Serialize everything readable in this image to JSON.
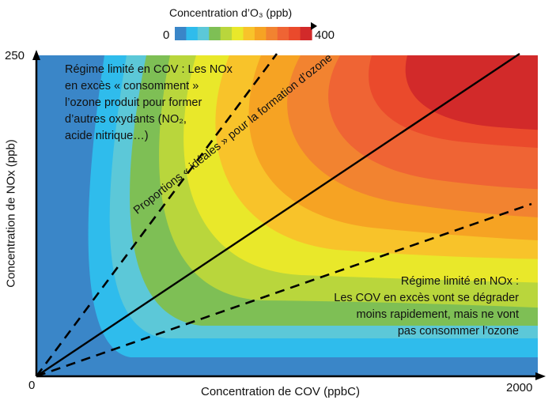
{
  "colorbar": {
    "title": "Concentration d’O₃ (ppb)",
    "min_label": "0",
    "max_label": "400",
    "colors": [
      "#3a86c8",
      "#2fbcec",
      "#5cc8d8",
      "#7ebf55",
      "#b9d63c",
      "#e9e82a",
      "#f8c32a",
      "#f6a323",
      "#f28330",
      "#ef6434",
      "#ea4a2c",
      "#d22a2a"
    ]
  },
  "axes": {
    "x_label": "Concentration de COV (ppbC)",
    "y_label": "Concentration de NOx (ppb)",
    "x_max_label": "2000",
    "y_max_label": "250",
    "origin_label": "0"
  },
  "annotations": {
    "voc_limited_lines": [
      "Régime limité en COV : Les NOx",
      "en excès « consomment »",
      "l’ozone produit pour former",
      "d’autres oxydants (NO₂,",
      "acide nitrique…)"
    ],
    "nox_limited_lines": [
      "Régime limité en NOx :",
      "Les COV en excès vont se dégrader",
      "moins rapidement, mais ne vont",
      "pas consommer l’ozone"
    ],
    "ideal_ratio": "Proportions « idéales » pour la formation d’ozone"
  }
}
